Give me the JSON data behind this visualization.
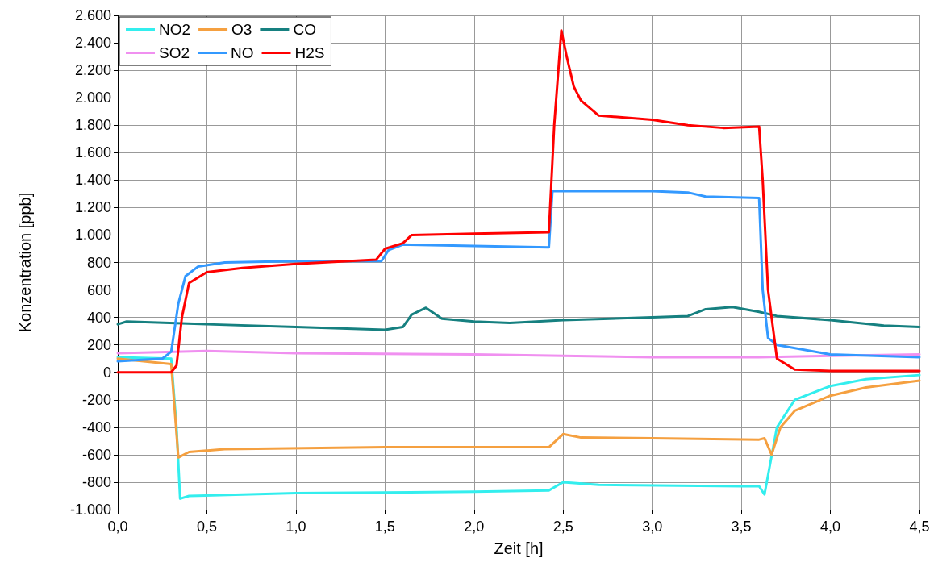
{
  "chart_data": {
    "type": "line",
    "xlabel": "Zeit [h]",
    "ylabel": "Konzentration [ppb]",
    "grid": true,
    "legend": "top left",
    "marker": "none",
    "line_style": "solid",
    "xlim": [
      0,
      4.5
    ],
    "xticks": [
      {
        "value": 0,
        "label": "0,0"
      },
      {
        "value": 0.5,
        "label": "0,5"
      },
      {
        "value": 1,
        "label": "1,0"
      },
      {
        "value": 1.5,
        "label": "1,5"
      },
      {
        "value": 2,
        "label": "2,0"
      },
      {
        "value": 2.5,
        "label": "2,5"
      },
      {
        "value": 3,
        "label": "3,0"
      },
      {
        "value": 3.5,
        "label": "3,5"
      },
      {
        "value": 4,
        "label": "4,0"
      },
      {
        "value": 4.5,
        "label": "4,5"
      }
    ],
    "ylim": [
      -1000,
      2600
    ],
    "yticks": [
      {
        "value": -1000,
        "label": "-1.000"
      },
      {
        "value": -800,
        "label": "-800"
      },
      {
        "value": -600,
        "label": "-600"
      },
      {
        "value": -400,
        "label": "-400"
      },
      {
        "value": -200,
        "label": "-200"
      },
      {
        "value": 0,
        "label": "0"
      },
      {
        "value": 200,
        "label": "200"
      },
      {
        "value": 400,
        "label": "400"
      },
      {
        "value": 600,
        "label": "600"
      },
      {
        "value": 800,
        "label": "800"
      },
      {
        "value": 1000,
        "label": "1.000"
      },
      {
        "value": 1200,
        "label": "1.200"
      },
      {
        "value": 1400,
        "label": "1.400"
      },
      {
        "value": 1600,
        "label": "1.600"
      },
      {
        "value": 1800,
        "label": "1.800"
      },
      {
        "value": 2000,
        "label": "2.000"
      },
      {
        "value": 2200,
        "label": "2.200"
      },
      {
        "value": 2400,
        "label": "2.400"
      },
      {
        "value": 2600,
        "label": "2.600"
      }
    ],
    "series": [
      {
        "name": "NO2",
        "color": "#33eeee",
        "x": [
          0,
          0.3,
          0.33,
          0.35,
          0.4,
          1.0,
          2.0,
          2.42,
          2.5,
          2.7,
          3.5,
          3.6,
          3.63,
          3.7,
          3.8,
          4.0,
          4.2,
          4.5
        ],
        "values": [
          110,
          100,
          -400,
          -920,
          -900,
          -880,
          -870,
          -860,
          -800,
          -820,
          -830,
          -830,
          -890,
          -400,
          -200,
          -100,
          -50,
          -20
        ]
      },
      {
        "name": "O3",
        "color": "#f5a040",
        "x": [
          0,
          0.3,
          0.34,
          0.4,
          0.6,
          1.5,
          2.42,
          2.5,
          2.6,
          3.0,
          3.6,
          3.63,
          3.67,
          3.72,
          3.8,
          4.0,
          4.2,
          4.5
        ],
        "values": [
          100,
          60,
          -620,
          -580,
          -560,
          -545,
          -545,
          -450,
          -475,
          -480,
          -490,
          -480,
          -600,
          -400,
          -280,
          -170,
          -110,
          -60
        ]
      },
      {
        "name": "CO",
        "color": "#168080",
        "x": [
          0,
          0.05,
          0.5,
          1.0,
          1.5,
          1.6,
          1.65,
          1.73,
          1.82,
          2.0,
          2.2,
          2.5,
          3.0,
          3.2,
          3.3,
          3.45,
          3.6,
          3.7,
          4.0,
          4.3,
          4.5
        ],
        "values": [
          350,
          370,
          350,
          330,
          310,
          330,
          420,
          470,
          390,
          370,
          360,
          380,
          400,
          410,
          460,
          475,
          440,
          410,
          380,
          340,
          330
        ]
      },
      {
        "name": "SO2",
        "color": "#f090f0",
        "x": [
          0,
          0.5,
          1.0,
          2.0,
          2.5,
          3.0,
          3.6,
          4.0,
          4.5
        ],
        "values": [
          140,
          155,
          140,
          130,
          120,
          110,
          110,
          120,
          130
        ]
      },
      {
        "name": "NO",
        "color": "#3399ff",
        "x": [
          0,
          0.25,
          0.3,
          0.34,
          0.38,
          0.45,
          0.6,
          1.0,
          1.48,
          1.52,
          1.6,
          2.0,
          2.42,
          2.44,
          2.6,
          3.0,
          3.2,
          3.3,
          3.6,
          3.62,
          3.65,
          3.7,
          4.0,
          4.5
        ],
        "values": [
          80,
          100,
          150,
          500,
          700,
          770,
          800,
          810,
          810,
          890,
          930,
          920,
          910,
          1320,
          1320,
          1320,
          1310,
          1280,
          1270,
          600,
          250,
          200,
          130,
          110
        ]
      },
      {
        "name": "H2S",
        "color": "#ff0000",
        "x": [
          0,
          0.3,
          0.33,
          0.36,
          0.4,
          0.5,
          0.7,
          1.0,
          1.45,
          1.5,
          1.6,
          1.65,
          2.0,
          2.42,
          2.45,
          2.49,
          2.52,
          2.56,
          2.6,
          2.7,
          3.0,
          3.2,
          3.4,
          3.6,
          3.62,
          3.65,
          3.7,
          3.8,
          4.0,
          4.5
        ],
        "values": [
          0,
          0,
          50,
          400,
          650,
          730,
          760,
          790,
          820,
          900,
          940,
          1000,
          1010,
          1020,
          1800,
          2490,
          2300,
          2080,
          1980,
          1870,
          1840,
          1800,
          1780,
          1790,
          1400,
          600,
          100,
          20,
          10,
          10
        ]
      }
    ]
  }
}
